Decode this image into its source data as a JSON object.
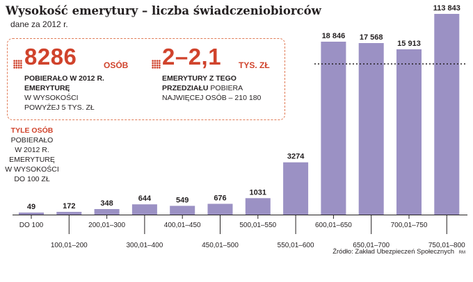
{
  "chart_data": {
    "type": "bar",
    "title": "Wysokość emerytury – liczba świadczeniobiorców",
    "subtitle": "dane za 2012 r.",
    "categories": [
      "DO 100",
      "100,01–200",
      "200,01–300",
      "300,01–400",
      "400,01–450",
      "450,01–500",
      "500,01–550",
      "550,01–600",
      "600,01–650",
      "650,01–700",
      "700,01–750",
      "750,01–800"
    ],
    "value_labels": [
      "49",
      "172",
      "348",
      "644",
      "549",
      "676",
      "1031",
      "3274",
      "18 846",
      "17 568",
      "15 913",
      "113 843"
    ],
    "values": [
      49,
      172,
      348,
      644,
      549,
      676,
      1031,
      3274,
      18846,
      17568,
      15913,
      113843
    ],
    "axis_break": true,
    "bar_color": "#9b91c4"
  },
  "info": {
    "left": {
      "number": "8286",
      "unit": "OSÓB",
      "line1": "POBIERAŁO W 2012 R.",
      "line2": "EMERYTURĘ",
      "line3": "W WYSOKOŚCI",
      "line4": "POWYŻEJ 5 TYS. ZŁ"
    },
    "right": {
      "number": "2–2,1",
      "unit": "TYS. ZŁ",
      "line1": "EMERYTURY Z TEGO",
      "line2_bold": "PRZEDZIAŁU",
      "line2_rest": " POBIERA",
      "line3": "NAJWIĘCEJ OSÓB – 210 180"
    }
  },
  "note": {
    "highlight": "TYLE OSÓB",
    "lines": [
      "POBIERAŁO",
      "W 2012 R.",
      "EMERYTURĘ",
      "W WYSOKOŚCI",
      "DO 100 ZŁ"
    ]
  },
  "source": "Źródło: Zakład Ubezpieczeń Społecznych",
  "credit": "RM",
  "colors": {
    "accent": "#d0432c",
    "bar": "#9b91c4",
    "text": "#231f20"
  }
}
